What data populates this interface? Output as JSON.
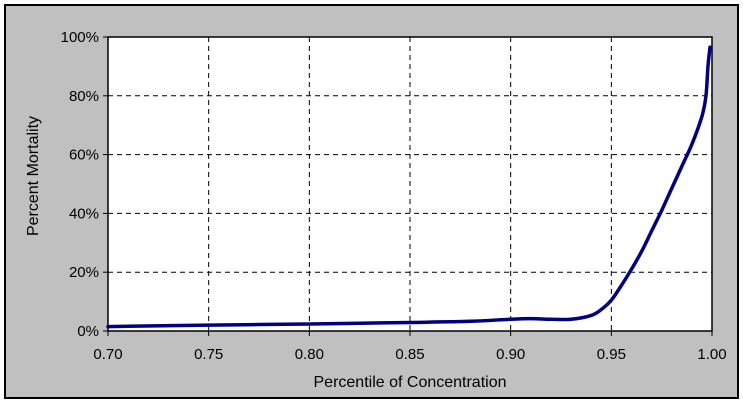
{
  "chart_data": {
    "type": "line",
    "xlabel": "Percentile of Concentration",
    "ylabel": "Percent Mortality",
    "xlim": [
      0.7,
      1.0
    ],
    "ylim": [
      0,
      100
    ],
    "x_ticks": [
      0.7,
      0.75,
      0.8,
      0.85,
      0.9,
      0.95,
      1.0
    ],
    "x_tick_labels": [
      "0.70",
      "0.75",
      "0.80",
      "0.85",
      "0.90",
      "0.95",
      "1.00"
    ],
    "y_ticks": [
      0,
      20,
      40,
      60,
      80,
      100
    ],
    "y_tick_labels": [
      "0%",
      "20%",
      "40%",
      "60%",
      "80%",
      "100%"
    ],
    "grid": true,
    "background": "#c0c0c0",
    "plot_background": "#ffffff",
    "series": [
      {
        "color": "#000080",
        "x": [
          0.7,
          0.75,
          0.8,
          0.85,
          0.88,
          0.9,
          0.91,
          0.92,
          0.93,
          0.94,
          0.945,
          0.95,
          0.955,
          0.96,
          0.965,
          0.97,
          0.975,
          0.98,
          0.985,
          0.99,
          0.995,
          0.997,
          0.998,
          0.999
        ],
        "y": [
          1.5,
          2.0,
          2.4,
          2.9,
          3.3,
          4.0,
          4.2,
          4.0,
          4.0,
          5.3,
          7.3,
          10.5,
          15.5,
          21.0,
          27.0,
          34.0,
          41.0,
          48.5,
          56.0,
          63.5,
          73.0,
          80.0,
          90.0,
          96.5
        ]
      }
    ]
  }
}
